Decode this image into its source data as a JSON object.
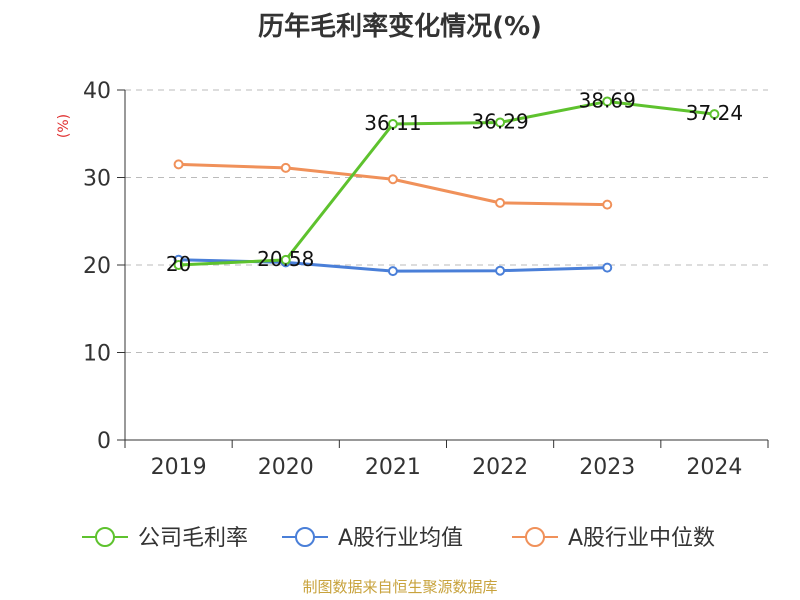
{
  "chart_data": {
    "type": "line",
    "title": "历年毛利率变化情况(%)",
    "ylabel": "(%)",
    "xlabel": "",
    "categories": [
      "2019",
      "2020",
      "2021",
      "2022",
      "2023",
      "2024"
    ],
    "ylim": [
      0,
      40
    ],
    "yticks": [
      0,
      10,
      20,
      30,
      40
    ],
    "grid": true,
    "legend_position": "bottom",
    "series": [
      {
        "name": "公司毛利率",
        "color": "#5ec22e",
        "values": [
          20,
          20.58,
          36.11,
          36.29,
          38.69,
          37.24
        ],
        "labels": [
          "20",
          "20.58",
          "36.11",
          "36.29",
          "38.69",
          "37.24"
        ]
      },
      {
        "name": "A股行业均值",
        "color": "#4a7fd8",
        "values": [
          20.6,
          20.3,
          19.3,
          19.35,
          19.7,
          null
        ]
      },
      {
        "name": "A股行业中位数",
        "color": "#f0915a",
        "values": [
          31.5,
          31.1,
          29.8,
          27.1,
          26.9,
          null
        ]
      }
    ]
  },
  "source": "制图数据来自恒生聚源数据库"
}
